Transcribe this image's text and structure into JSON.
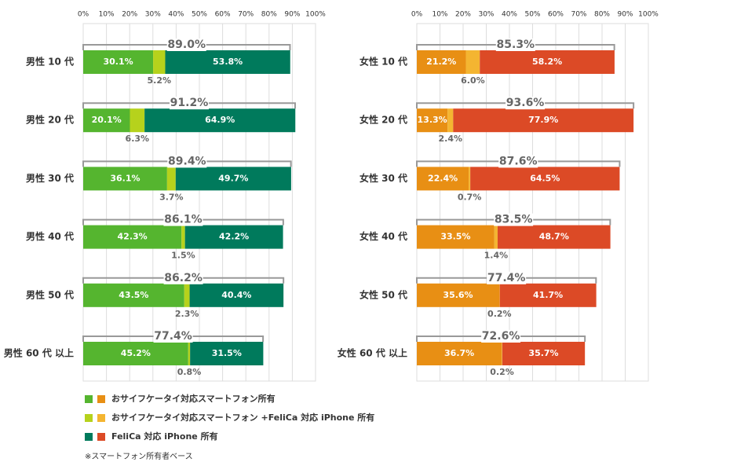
{
  "chart_data": [
    {
      "type": "bar",
      "categories": [
        "男性 10 代",
        "男性 20 代",
        "男性 30 代",
        "男性 40 代",
        "男性 50 代",
        "男性 60 代 以上"
      ],
      "series": [
        {
          "name": "おサイフケータイ対応スマートフォン所有",
          "color": "#55b52f",
          "values": [
            30.1,
            20.1,
            36.1,
            42.3,
            43.5,
            45.2
          ],
          "value_labels": [
            "30.1%",
            "20.1%",
            "36.1%",
            "42.3%",
            "43.5%",
            "45.2%"
          ]
        },
        {
          "name": "おサイフケータイ対応スマートフォン +FeliCa 対応 iPhone 所有",
          "color": "#b6d21c",
          "values": [
            5.2,
            6.3,
            3.7,
            1.5,
            2.3,
            0.8
          ],
          "value_labels": [
            "5.2%",
            "6.3%",
            "3.7%",
            "1.5%",
            "2.3%",
            "0.8%"
          ]
        },
        {
          "name": "FeliCa 対応 iPhone 所有",
          "color": "#007a5c",
          "values": [
            53.8,
            64.9,
            49.7,
            42.2,
            40.4,
            31.5
          ],
          "value_labels": [
            "53.8%",
            "64.9%",
            "49.7%",
            "42.2%",
            "40.4%",
            "31.5%"
          ]
        }
      ],
      "totals": [
        89.0,
        91.2,
        89.4,
        86.1,
        86.2,
        77.4
      ],
      "totals_labels": [
        "89.0%",
        "91.2%",
        "89.4%",
        "86.1%",
        "86.2%",
        "77.4%"
      ],
      "xlim": [
        0,
        100
      ],
      "xticks": [
        {
          "value": 0,
          "label": "0%"
        },
        {
          "value": 10,
          "label": "10%"
        },
        {
          "value": 20,
          "label": "20%"
        },
        {
          "value": 30,
          "label": "30%"
        },
        {
          "value": 40,
          "label": "40%"
        },
        {
          "value": 50,
          "label": "50%"
        },
        {
          "value": 60,
          "label": "60%"
        },
        {
          "value": 70,
          "label": "70%"
        },
        {
          "value": 80,
          "label": "80%"
        },
        {
          "value": 90,
          "label": "90%"
        },
        {
          "value": 100,
          "label": "100%"
        }
      ],
      "grid": true
    },
    {
      "type": "bar",
      "categories": [
        "女性 10 代",
        "女性 20 代",
        "女性 30 代",
        "女性 40 代",
        "女性 50 代",
        "女性 60 代 以上"
      ],
      "series": [
        {
          "color": "#e88f14",
          "values": [
            21.2,
            13.3,
            22.4,
            33.5,
            35.6,
            36.7
          ],
          "value_labels": [
            "21.2%",
            "13.3%",
            "22.4%",
            "33.5%",
            "35.6%",
            "36.7%"
          ]
        },
        {
          "color": "#f4b531",
          "values": [
            6.0,
            2.4,
            0.7,
            1.4,
            0.2,
            0.2
          ],
          "value_labels": [
            "6.0%",
            "2.4%",
            "0.7%",
            "1.4%",
            "0.2%",
            "0.2%"
          ]
        },
        {
          "color": "#dc4a26",
          "values": [
            58.2,
            77.9,
            64.5,
            48.7,
            41.7,
            35.7
          ],
          "value_labels": [
            "58.2%",
            "77.9%",
            "64.5%",
            "48.7%",
            "41.7%",
            "35.7%"
          ]
        }
      ],
      "totals": [
        85.3,
        93.6,
        87.6,
        83.5,
        77.4,
        72.6
      ],
      "totals_labels": [
        "85.3%",
        "93.6%",
        "87.6%",
        "83.5%",
        "77.4%",
        "72.6%"
      ],
      "xlim": [
        0,
        100
      ],
      "xticks": [
        {
          "value": 0,
          "label": "0%"
        },
        {
          "value": 10,
          "label": "10%"
        },
        {
          "value": 20,
          "label": "20%"
        },
        {
          "value": 30,
          "label": "30%"
        },
        {
          "value": 40,
          "label": "40%"
        },
        {
          "value": 50,
          "label": "50%"
        },
        {
          "value": 60,
          "label": "60%"
        },
        {
          "value": 70,
          "label": "70%"
        },
        {
          "value": 80,
          "label": "80%"
        },
        {
          "value": 90,
          "label": "90%"
        },
        {
          "value": 100,
          "label": "100%"
        }
      ],
      "grid": true
    }
  ],
  "note": "※スマートフォン所有者ベース"
}
